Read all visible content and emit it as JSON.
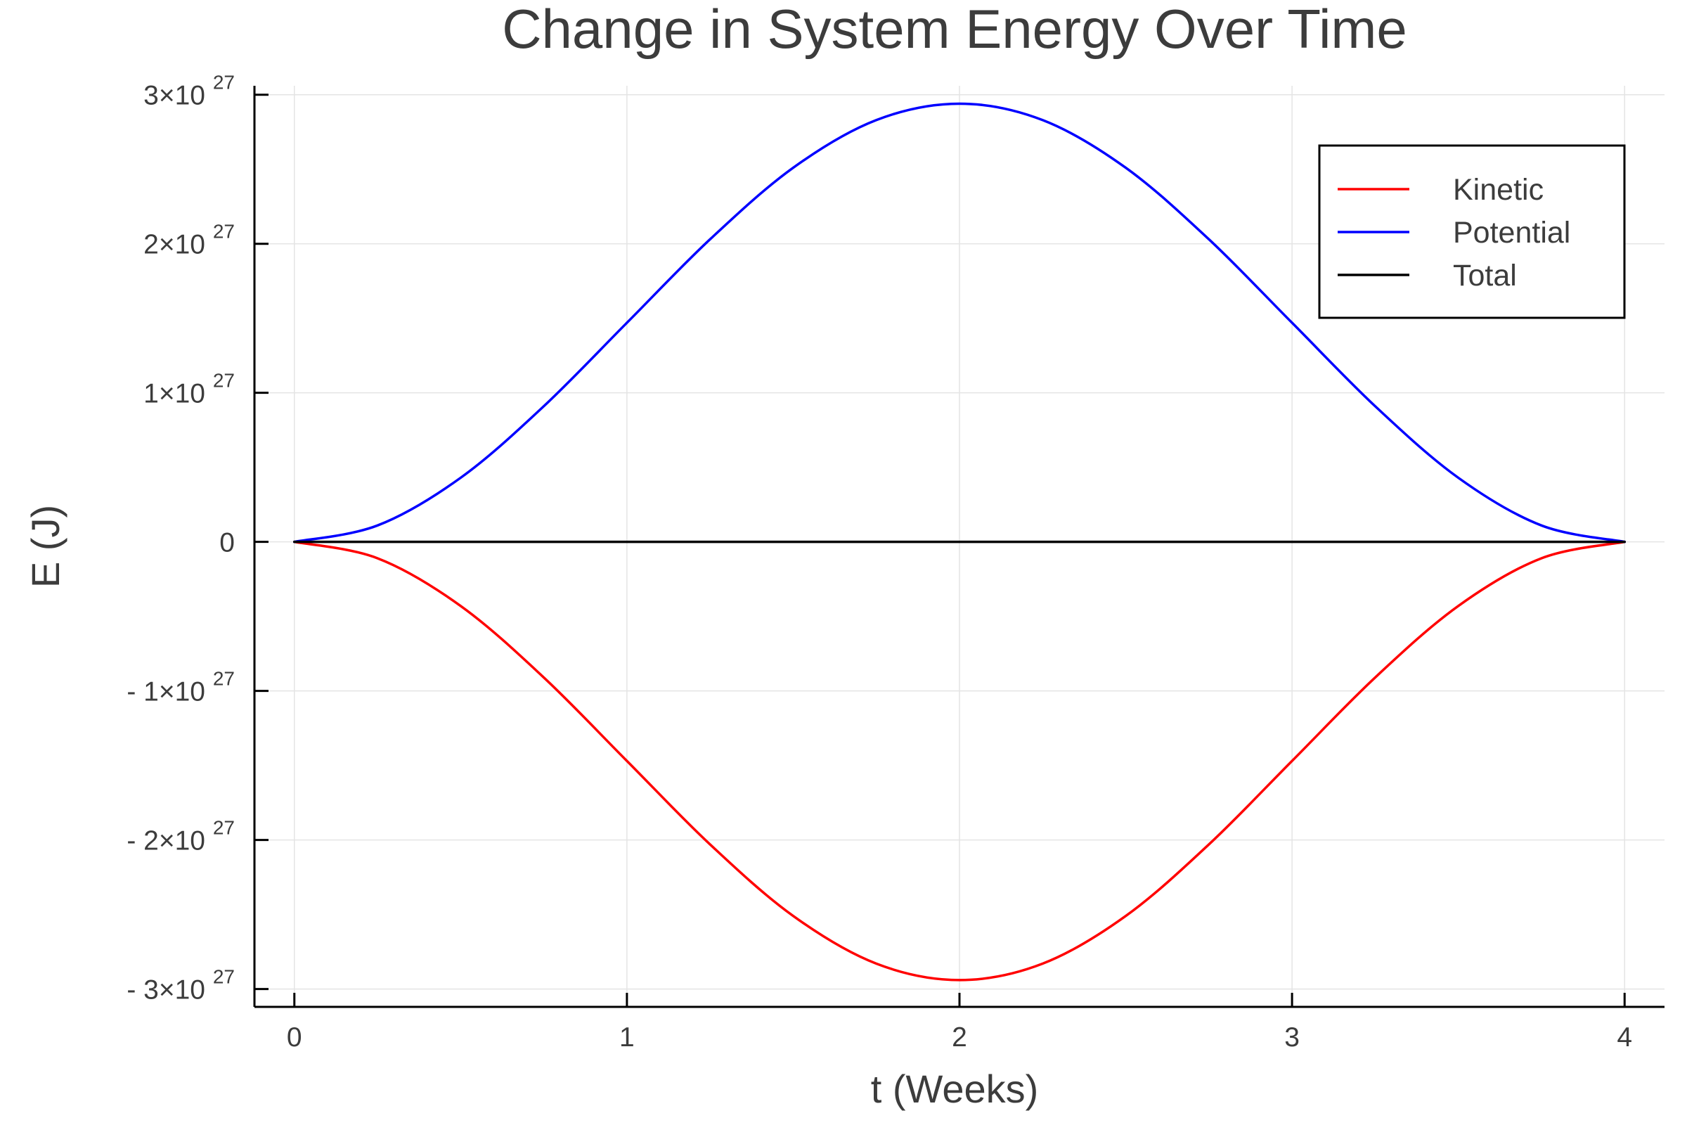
{
  "chart_data": {
    "type": "line",
    "title": "Change in System Energy Over Time",
    "xlabel": "t (Weeks)",
    "ylabel": "E (J)",
    "xlim": [
      -0.12,
      4.12
    ],
    "ylim": [
      -3.12e+27,
      3.06e+27
    ],
    "x_ticks": [
      0,
      1,
      2,
      3,
      4
    ],
    "x_tick_labels": [
      "0",
      "1",
      "2",
      "3",
      "4"
    ],
    "y_ticks": [
      -3e+27,
      -2e+27,
      -1e+27,
      0,
      1e+27,
      2e+27,
      3e+27
    ],
    "y_tick_labels": [
      {
        "mantissa": "- 3×10",
        "exp": "27"
      },
      {
        "mantissa": "- 2×10",
        "exp": "27"
      },
      {
        "mantissa": "- 1×10",
        "exp": "27"
      },
      {
        "mantissa": "0",
        "exp": ""
      },
      {
        "mantissa": "1×10",
        "exp": "27"
      },
      {
        "mantissa": "2×10",
        "exp": "27"
      },
      {
        "mantissa": "3×10",
        "exp": "27"
      }
    ],
    "grid": true,
    "legend_position": "top-right",
    "x": [
      0,
      0.25,
      0.5,
      0.75,
      1,
      1.25,
      1.5,
      1.75,
      2,
      2.25,
      2.5,
      2.75,
      3,
      3.25,
      3.5,
      3.75,
      4
    ],
    "series": [
      {
        "name": "Kinetic",
        "color": "#ff0000",
        "values": [
          0,
          -1.1e+26,
          -4.3e+26,
          -9.1e+26,
          -1.47e+27,
          -2.03e+27,
          -2.51e+27,
          -2.83e+27,
          -2.94e+27,
          -2.83e+27,
          -2.51e+27,
          -2.03e+27,
          -1.47e+27,
          -9.1e+26,
          -4.3e+26,
          -1.1e+26,
          0
        ]
      },
      {
        "name": "Potential",
        "color": "#0000ff",
        "values": [
          0,
          1.1e+26,
          4.3e+26,
          9.1e+26,
          1.47e+27,
          2.03e+27,
          2.51e+27,
          2.83e+27,
          2.94e+27,
          2.83e+27,
          2.51e+27,
          2.03e+27,
          1.47e+27,
          9.1e+26,
          4.3e+26,
          1.1e+26,
          0
        ]
      },
      {
        "name": "Total",
        "color": "#000000",
        "values": [
          0,
          0,
          0,
          0,
          0,
          0,
          0,
          0,
          0,
          0,
          0,
          0,
          0,
          0,
          0,
          0,
          0
        ]
      }
    ]
  }
}
